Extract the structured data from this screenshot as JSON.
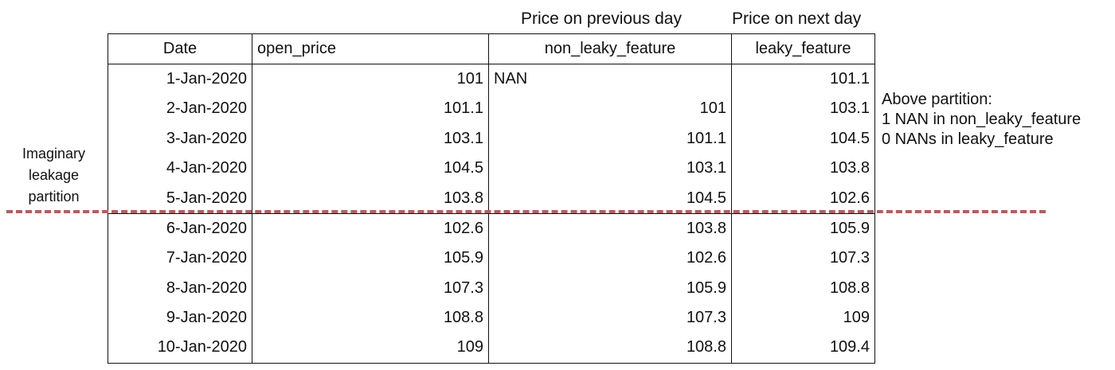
{
  "header_labels": {
    "previous_day": "Price on previous day",
    "next_day": "Price on next day"
  },
  "table": {
    "columns": [
      "Date",
      "open_price",
      "non_leaky_feature",
      "leaky_feature"
    ],
    "rows": [
      [
        "1-Jan-2020",
        "101",
        "NAN",
        "101.1"
      ],
      [
        "2-Jan-2020",
        "101.1",
        "101",
        "103.1"
      ],
      [
        "3-Jan-2020",
        "103.1",
        "101.1",
        "104.5"
      ],
      [
        "4-Jan-2020",
        "104.5",
        "103.1",
        "103.8"
      ],
      [
        "5-Jan-2020",
        "103.8",
        "104.5",
        "102.6"
      ],
      [
        "6-Jan-2020",
        "102.6",
        "103.8",
        "105.9"
      ],
      [
        "7-Jan-2020",
        "105.9",
        "102.6",
        "107.3"
      ],
      [
        "8-Jan-2020",
        "107.3",
        "105.9",
        "108.8"
      ],
      [
        "9-Jan-2020",
        "108.8",
        "107.3",
        "109"
      ],
      [
        "10-Jan-2020",
        "109",
        "108.8",
        "109.4"
      ]
    ]
  },
  "partition_label": {
    "line1": "Imaginary",
    "line2": "leakage",
    "line3": "partition"
  },
  "note": {
    "line1": "Above partition:",
    "line2": "1 NAN in non_leaky_feature",
    "line3": "0 NANs in leaky_feature"
  },
  "colors": {
    "partition_line": "#b06060"
  }
}
